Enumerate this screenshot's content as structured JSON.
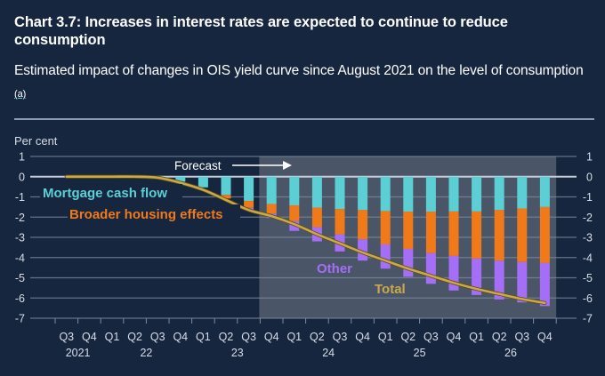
{
  "header": {
    "title": "Chart 3.7: Increases in interest rates are expected to continue to reduce consumption",
    "subtitle": "Estimated impact of changes in OIS yield curve since August 2021 on the level of consumption",
    "footnote_marker": "(a)"
  },
  "chart_data": {
    "type": "bar",
    "stacked": true,
    "title": "Chart 3.7: Increases in interest rates are expected to continue to reduce consumption",
    "subtitle": "Estimated impact of changes in OIS yield curve since August 2021 on the level of consumption (a)",
    "ylabel": "Per cent",
    "xlabel": "",
    "ylim": [
      -7,
      1
    ],
    "yticks": [
      1,
      0,
      -1,
      -2,
      -3,
      -4,
      -5,
      -6,
      -7
    ],
    "grid": true,
    "dual_y_axis": true,
    "categories": [
      "Q3 2021",
      "Q4 2021",
      "Q1 2022",
      "Q2 2022",
      "Q3 2022",
      "Q4 2022",
      "Q1 2023",
      "Q2 2023",
      "Q3 2023",
      "Q4 2023",
      "Q1 2024",
      "Q2 2024",
      "Q3 2024",
      "Q4 2024",
      "Q1 2025",
      "Q2 2025",
      "Q3 2025",
      "Q4 2025",
      "Q1 2026",
      "Q2 2026",
      "Q3 2026",
      "Q4 2026"
    ],
    "quarter_labels": [
      "Q3",
      "Q4",
      "Q1",
      "Q2",
      "Q3",
      "Q4",
      "Q1",
      "Q2",
      "Q3",
      "Q4",
      "Q1",
      "Q2",
      "Q3",
      "Q4",
      "Q1",
      "Q2",
      "Q3",
      "Q4",
      "Q1",
      "Q2",
      "Q3",
      "Q4"
    ],
    "year_labels": [
      {
        "label": "2021",
        "center_index": 0.5
      },
      {
        "label": "22",
        "center_index": 3.5
      },
      {
        "label": "23",
        "center_index": 7.5
      },
      {
        "label": "24",
        "center_index": 11.5
      },
      {
        "label": "25",
        "center_index": 15.5
      },
      {
        "label": "26",
        "center_index": 19.5
      }
    ],
    "series": [
      {
        "name": "Mortgage cash flow",
        "type": "bar",
        "color": "#5ccfd4",
        "values": [
          0,
          0,
          0,
          0,
          0,
          -0.25,
          -0.53,
          -0.9,
          -1.2,
          -1.35,
          -1.42,
          -1.53,
          -1.6,
          -1.65,
          -1.7,
          -1.73,
          -1.73,
          -1.72,
          -1.72,
          -1.65,
          -1.57,
          -1.5
        ]
      },
      {
        "name": "Broader housing effects",
        "type": "bar",
        "color": "#f07a1a",
        "values": [
          0,
          0,
          0,
          0,
          0,
          0,
          0,
          -0.18,
          -0.34,
          -0.47,
          -0.78,
          -0.97,
          -1.25,
          -1.45,
          -1.65,
          -1.84,
          -2.05,
          -2.2,
          -2.33,
          -2.5,
          -2.65,
          -2.77
        ]
      },
      {
        "name": "Other",
        "type": "bar",
        "color": "#a56ef7",
        "values": [
          0,
          0,
          0,
          0,
          0,
          0,
          0,
          0,
          -0.12,
          -0.22,
          -0.48,
          -0.7,
          -0.85,
          -1.05,
          -1.2,
          -1.38,
          -1.52,
          -1.71,
          -1.8,
          -1.92,
          -2.0,
          -2.13
        ]
      },
      {
        "name": "Total",
        "type": "line",
        "color": "#c9a94a",
        "values": [
          0,
          0,
          0,
          0,
          -0.05,
          -0.3,
          -0.65,
          -1.15,
          -1.65,
          -1.95,
          -2.35,
          -2.85,
          -3.3,
          -3.75,
          -4.15,
          -4.55,
          -4.9,
          -5.25,
          -5.55,
          -5.8,
          -6.05,
          -6.25
        ]
      }
    ],
    "annotations": [
      {
        "text": "Forecast",
        "type": "shaded-region",
        "from_category": "Q4 2023",
        "to_category": "Q4 2026",
        "arrow": "right"
      },
      {
        "text": "Mortgage cash flow",
        "series": "Mortgage cash flow",
        "placement": "left"
      },
      {
        "text": "Broader housing effects",
        "series": "Broader housing effects",
        "placement": "left"
      },
      {
        "text": "Other",
        "series": "Other",
        "placement": "center-bottom"
      },
      {
        "text": "Total",
        "series": "Total",
        "placement": "center-bottom"
      }
    ],
    "legend": "inline-labels",
    "colors": {
      "background": "#17263f",
      "forecast_shade": "#4a5668",
      "grid": "#7d8aa0",
      "zero_line": "#c7cfdc",
      "text": "#d7dde8"
    }
  }
}
